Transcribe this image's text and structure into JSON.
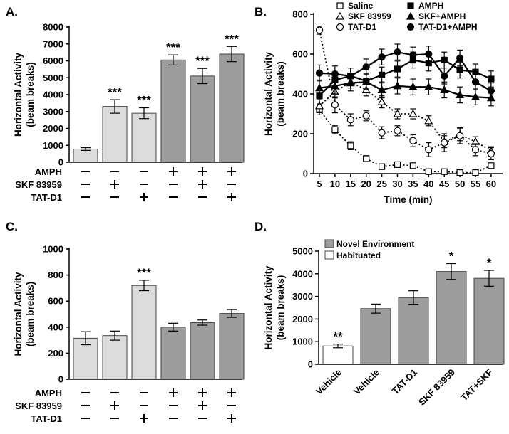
{
  "chart_data": [
    {
      "panel": "A.",
      "type": "bar",
      "ylabel_line1": "Horizontal Activity",
      "ylabel_line2": "(beam breaks)",
      "ylim": [
        0,
        8000
      ],
      "yticks": [
        "0",
        "1000",
        "2000",
        "3000",
        "4000",
        "5000",
        "6000",
        "7000",
        "8000"
      ],
      "values": [
        780,
        3300,
        2900,
        6050,
        5100,
        6400
      ],
      "errors": [
        80,
        400,
        320,
        300,
        450,
        450
      ],
      "colors": [
        "#dcdcdc",
        "#dcdcdc",
        "#dcdcdc",
        "#9c9c9c",
        "#9c9c9c",
        "#9c9c9c"
      ],
      "annotations": [
        "",
        "***",
        "***",
        "***",
        "***",
        "***"
      ],
      "conditions": [
        {
          "label": "AMPH",
          "signs": [
            "—",
            "—",
            "—",
            "+",
            "+",
            "+"
          ]
        },
        {
          "label": "SKF 83959",
          "signs": [
            "—",
            "+",
            "—",
            "—",
            "+",
            "—"
          ]
        },
        {
          "label": "TAT-D1",
          "signs": [
            "—",
            "—",
            "+",
            "—",
            "—",
            "+"
          ]
        }
      ]
    },
    {
      "panel": "B.",
      "type": "line",
      "ylabel_line1": "Horizontal Activity",
      "ylabel_line2": "(beam breaks)",
      "xlabel": "Time (min)",
      "ylim": [
        0,
        800
      ],
      "yticks": [
        "0",
        "200",
        "400",
        "600",
        "800"
      ],
      "x": [
        5,
        10,
        15,
        20,
        25,
        30,
        35,
        40,
        45,
        50,
        55,
        60
      ],
      "series": [
        {
          "name": "Saline",
          "marker": "square-open",
          "style": "dotted",
          "values": [
            320,
            220,
            140,
            75,
            35,
            45,
            40,
            10,
            10,
            5,
            5,
            40
          ],
          "errors": [
            25,
            20,
            20,
            15,
            10,
            10,
            10,
            5,
            5,
            5,
            5,
            10
          ]
        },
        {
          "name": "SKF 83959",
          "marker": "triangle-open",
          "style": "dotted",
          "values": [
            340,
            410,
            460,
            420,
            360,
            300,
            300,
            265,
            160,
            195,
            160,
            115
          ],
          "errors": [
            30,
            30,
            30,
            30,
            30,
            25,
            25,
            25,
            30,
            30,
            25,
            20
          ]
        },
        {
          "name": "TAT-D1",
          "marker": "circle-open",
          "style": "dotted",
          "values": [
            720,
            345,
            270,
            290,
            205,
            215,
            165,
            120,
            155,
            190,
            120,
            100
          ],
          "errors": [
            20,
            40,
            30,
            25,
            30,
            25,
            30,
            35,
            45,
            40,
            30,
            30
          ]
        },
        {
          "name": "AMPH",
          "marker": "square-filled",
          "style": "solid",
          "values": [
            390,
            470,
            490,
            465,
            495,
            525,
            570,
            555,
            570,
            520,
            510,
            475
          ],
          "errors": [
            40,
            40,
            40,
            40,
            40,
            40,
            40,
            40,
            40,
            40,
            40,
            40
          ]
        },
        {
          "name": "SKF+AMPH",
          "marker": "triangle-filled",
          "style": "solid",
          "values": [
            430,
            440,
            455,
            460,
            420,
            440,
            435,
            435,
            420,
            395,
            385,
            380
          ],
          "errors": [
            40,
            40,
            40,
            40,
            40,
            40,
            40,
            40,
            40,
            40,
            40,
            40
          ]
        },
        {
          "name": "TAT-D1+AMPH",
          "marker": "circle-filled",
          "style": "solid",
          "values": [
            505,
            500,
            490,
            535,
            585,
            610,
            595,
            600,
            490,
            580,
            460,
            415
          ],
          "errors": [
            40,
            40,
            40,
            40,
            40,
            40,
            40,
            40,
            40,
            40,
            40,
            40
          ]
        }
      ]
    },
    {
      "panel": "C.",
      "type": "bar",
      "ylabel_line1": "Horizontal Activity",
      "ylabel_line2": "(beam breaks)",
      "ylim": [
        0,
        1000
      ],
      "yticks": [
        "0",
        "200",
        "400",
        "600",
        "800",
        "1000"
      ],
      "values": [
        315,
        335,
        720,
        400,
        435,
        505
      ],
      "errors": [
        50,
        35,
        40,
        30,
        20,
        30
      ],
      "colors": [
        "#dcdcdc",
        "#dcdcdc",
        "#dcdcdc",
        "#9c9c9c",
        "#9c9c9c",
        "#9c9c9c"
      ],
      "annotations": [
        "",
        "",
        "***",
        "",
        "",
        ""
      ],
      "conditions": [
        {
          "label": "AMPH",
          "signs": [
            "—",
            "—",
            "—",
            "+",
            "+",
            "+"
          ]
        },
        {
          "label": "SKF 83959",
          "signs": [
            "—",
            "+",
            "—",
            "—",
            "+",
            "—"
          ]
        },
        {
          "label": "TAT-D1",
          "signs": [
            "—",
            "—",
            "+",
            "—",
            "—",
            "+"
          ]
        }
      ]
    },
    {
      "panel": "D.",
      "type": "bar",
      "ylabel_line1": "Horizontal Activity",
      "ylabel_line2": "(beam breaks)",
      "ylim": [
        0,
        5000
      ],
      "yticks": [
        "0",
        "1000",
        "2000",
        "3000",
        "4000",
        "5000"
      ],
      "categories": [
        "Vehicle",
        "Vehicle",
        "TAT-D1",
        "SKF 83959",
        "TAT+SKF"
      ],
      "values": [
        810,
        2460,
        2950,
        4100,
        3800
      ],
      "errors": [
        80,
        200,
        300,
        350,
        350
      ],
      "colors": [
        "#ffffff",
        "#9c9c9c",
        "#9c9c9c",
        "#9c9c9c",
        "#9c9c9c"
      ],
      "annotations": [
        "**",
        "",
        "",
        "*",
        "*"
      ],
      "legend": [
        {
          "label": "Novel Environment",
          "color": "#9c9c9c"
        },
        {
          "label": "Habituated",
          "color": "#ffffff"
        }
      ]
    }
  ]
}
